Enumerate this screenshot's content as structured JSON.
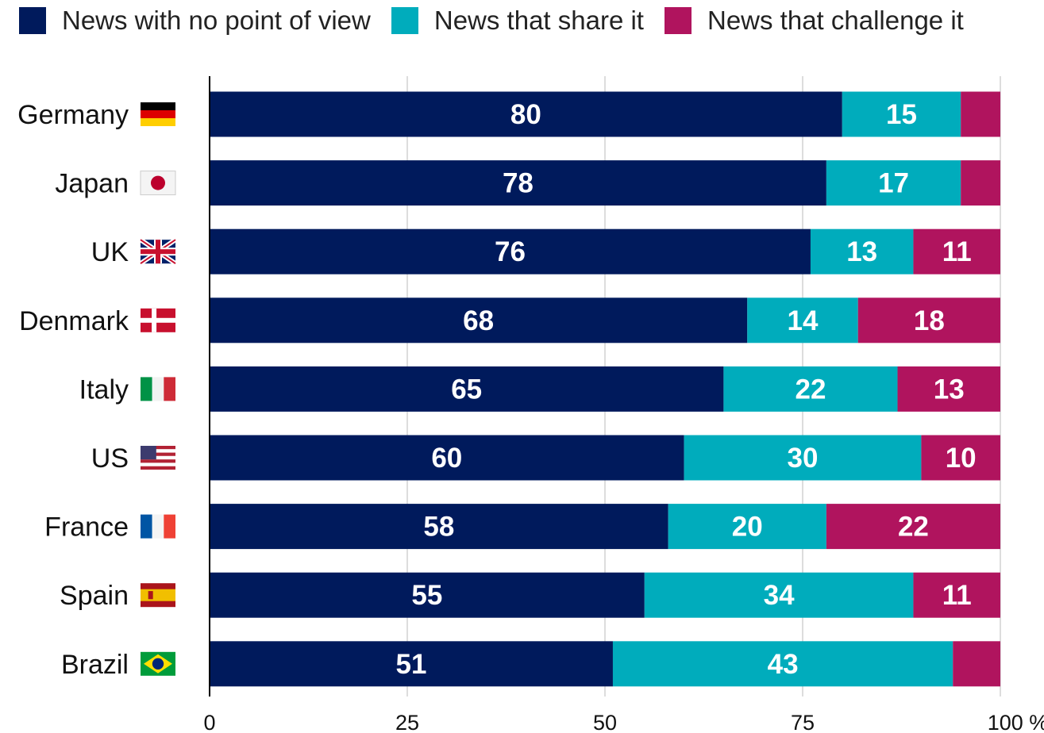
{
  "colors": {
    "no_pov": "#001a5c",
    "share": "#00acbc",
    "challenge": "#b0145e",
    "grid": "#bbbbbb",
    "axis": "#000000"
  },
  "legend": [
    {
      "label": "News with no point of view",
      "color": "#001a5c"
    },
    {
      "label": "News that share it",
      "color": "#00acbc"
    },
    {
      "label": "News that challenge it",
      "color": "#b0145e"
    }
  ],
  "chart_data": {
    "type": "bar",
    "orientation": "horizontal",
    "stacked": true,
    "categories": [
      "Germany",
      "Japan",
      "UK",
      "Denmark",
      "Italy",
      "US",
      "France",
      "Spain",
      "Brazil"
    ],
    "category_flags": [
      "germany-flag-icon",
      "japan-flag-icon",
      "uk-flag-icon",
      "denmark-flag-icon",
      "italy-flag-icon",
      "us-flag-icon",
      "france-flag-icon",
      "spain-flag-icon",
      "brazil-flag-icon"
    ],
    "series": [
      {
        "name": "News with no point of view",
        "color": "#001a5c",
        "values": [
          80,
          78,
          76,
          68,
          65,
          60,
          58,
          55,
          51
        ],
        "labels": [
          "80",
          "78",
          "76",
          "68",
          "65",
          "60",
          "58",
          "55",
          "51"
        ]
      },
      {
        "name": "News that share it",
        "color": "#00acbc",
        "values": [
          15,
          17,
          13,
          14,
          22,
          30,
          20,
          34,
          43
        ],
        "labels": [
          "15",
          "17",
          "13",
          "14",
          "22",
          "30",
          "20",
          "34",
          "43"
        ]
      },
      {
        "name": "News that challenge it",
        "color": "#b0145e",
        "values": [
          5,
          5,
          11,
          18,
          13,
          10,
          22,
          11,
          6
        ],
        "labels": [
          "",
          "",
          "11",
          "18",
          "13",
          "10",
          "22",
          "11",
          ""
        ]
      }
    ],
    "xlim": [
      0,
      100
    ],
    "xticks": [
      0,
      25,
      50,
      75,
      100
    ],
    "xtick_labels": [
      "0",
      "25",
      "50",
      "75",
      "100 %"
    ],
    "grid": true,
    "legend_position": "top-left"
  }
}
